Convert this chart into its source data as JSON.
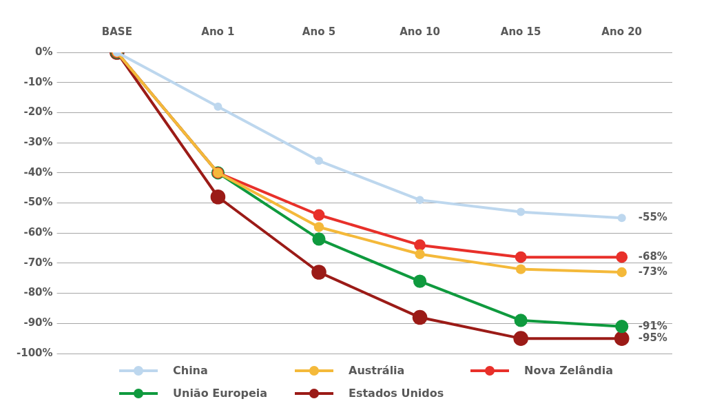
{
  "chart_data": {
    "type": "line",
    "categories": [
      "BASE",
      "Ano 1",
      "Ano 5",
      "Ano 10",
      "Ano 15",
      "Ano 20"
    ],
    "series": [
      {
        "name": "China",
        "color": "#bdd7ee",
        "values": [
          0,
          -18,
          -36,
          -49,
          -53,
          -55
        ],
        "value_labels": [
          null,
          null,
          null,
          null,
          null,
          "-55%"
        ]
      },
      {
        "name": "Austrália",
        "color": "#f4b93a",
        "values": [
          0,
          -40,
          -58,
          -67,
          -72,
          -73
        ],
        "value_labels": [
          null,
          null,
          null,
          null,
          null,
          "-73%"
        ]
      },
      {
        "name": "Nova Zelândia",
        "color": "#e8302a",
        "values": [
          0,
          -40,
          -54,
          -64,
          -68,
          -68
        ],
        "value_labels": [
          null,
          null,
          null,
          null,
          null,
          "-68%"
        ]
      },
      {
        "name": "União Europeia",
        "color": "#0f9a3e",
        "values": [
          0,
          -40,
          -62,
          -76,
          -89,
          -91
        ],
        "value_labels": [
          null,
          null,
          null,
          null,
          null,
          "-91%"
        ]
      },
      {
        "name": "Estados Unidos",
        "color": "#9b1b17",
        "values": [
          0,
          -48,
          -73,
          -88,
          -95,
          -95
        ],
        "value_labels": [
          null,
          null,
          null,
          null,
          null,
          "-95%"
        ]
      }
    ],
    "ylim": [
      -100,
      0
    ],
    "yticks": [
      {
        "value": 0,
        "label": "0%"
      },
      {
        "value": -10,
        "label": "-10%"
      },
      {
        "value": -20,
        "label": "-20%"
      },
      {
        "value": -30,
        "label": "-30%"
      },
      {
        "value": -40,
        "label": "-40%"
      },
      {
        "value": -50,
        "label": "-50%"
      },
      {
        "value": -60,
        "label": "-60%"
      },
      {
        "value": -70,
        "label": "-70%"
      },
      {
        "value": -80,
        "label": "-80%"
      },
      {
        "value": -90,
        "label": "-90%"
      },
      {
        "value": -100,
        "label": "-100%"
      }
    ],
    "grid": "y",
    "legend": "bottom",
    "marker": "circle",
    "line_style": "solid"
  }
}
